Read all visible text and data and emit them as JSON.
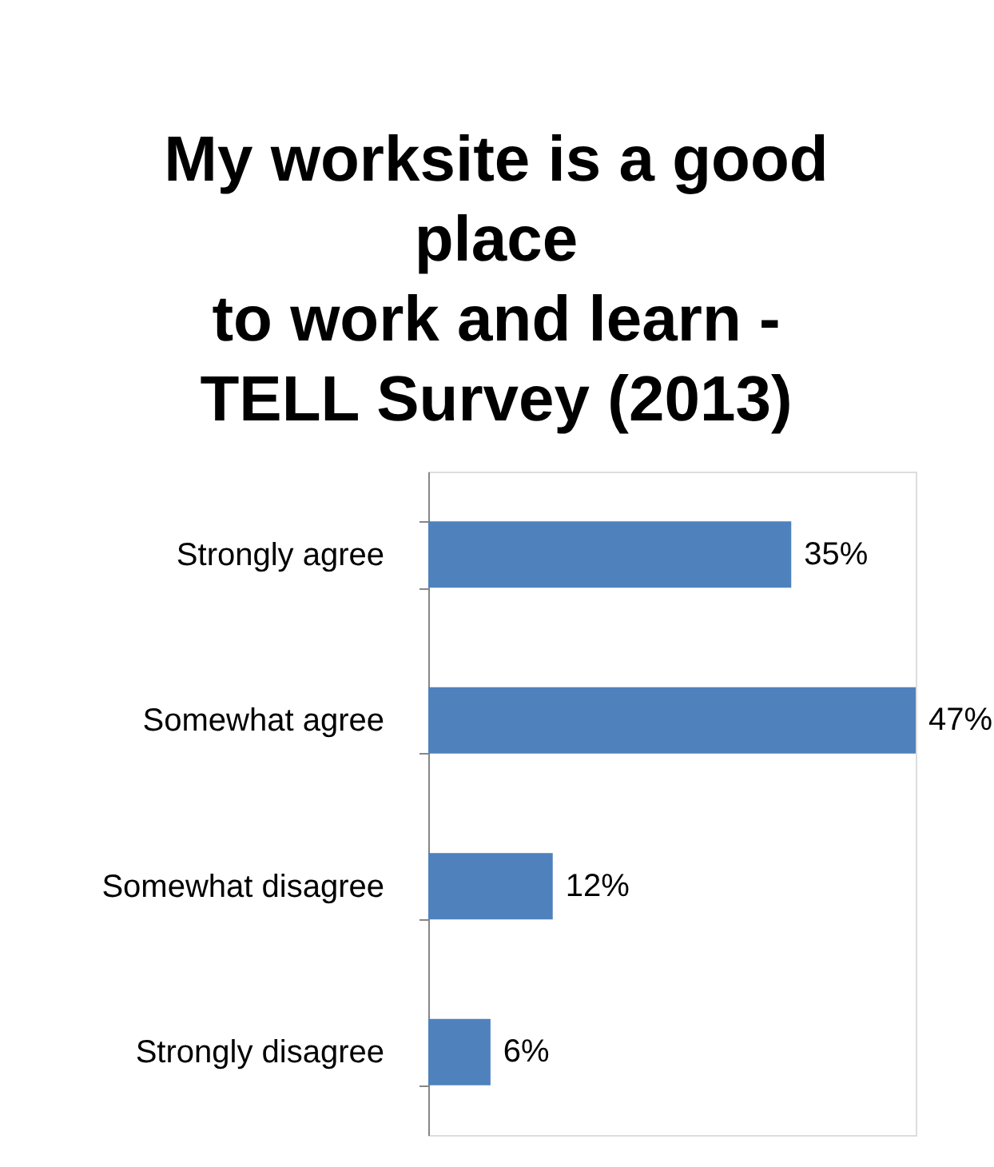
{
  "chart_data": {
    "type": "bar",
    "orientation": "horizontal",
    "title": "My worksite is a good\nplace\nto work and learn -\nTELL Survey (2013)",
    "categories": [
      "Strongly agree",
      "Somewhat agree",
      "Somewhat disagree",
      "Strongly disagree"
    ],
    "values": [
      35,
      47,
      12,
      6
    ],
    "color": "#4f81bd",
    "value_labels": [
      "35%",
      "47%",
      "12%",
      "6%"
    ],
    "tick_labels": "y"
  }
}
